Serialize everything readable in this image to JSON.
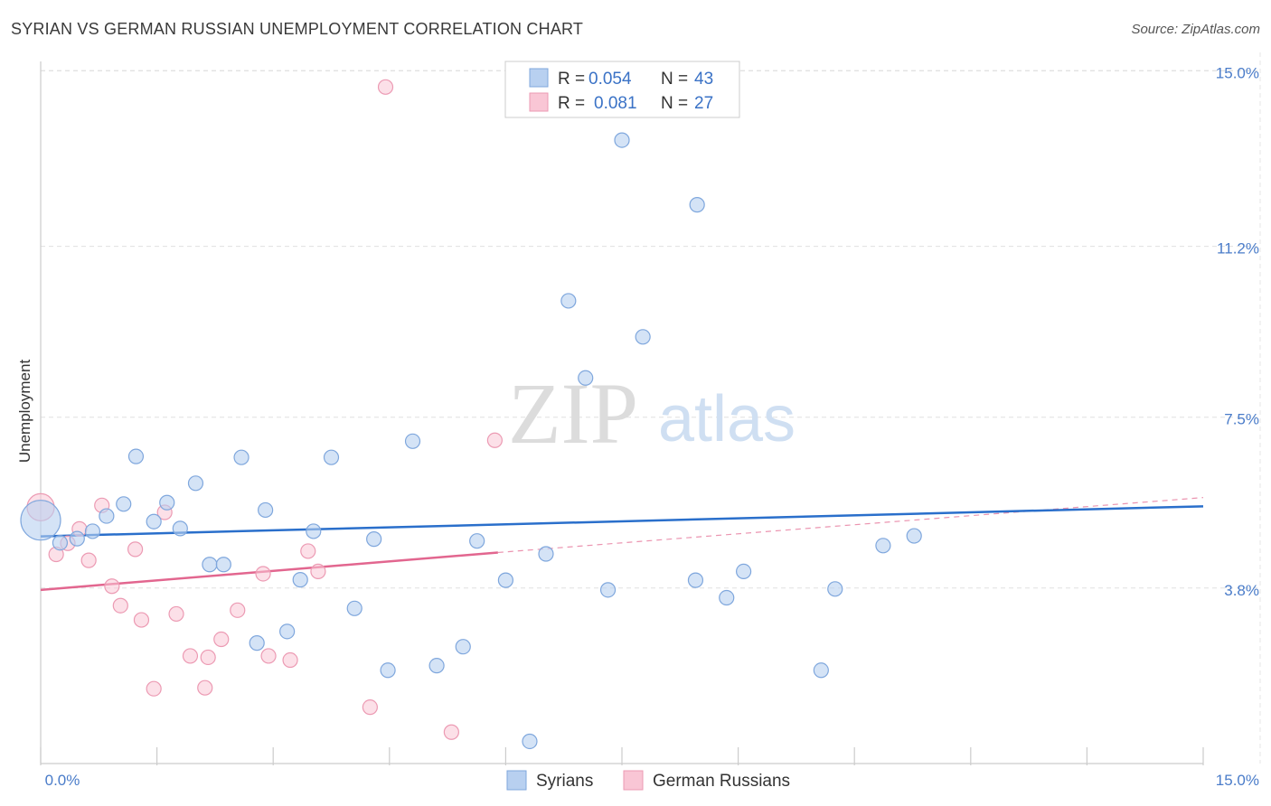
{
  "header": {
    "title": "SYRIAN VS GERMAN RUSSIAN UNEMPLOYMENT CORRELATION CHART",
    "source": "Source: ZipAtlas.com"
  },
  "watermark": {
    "zip": "ZIP",
    "atlas": "atlas"
  },
  "legend": {
    "r_label": "R =",
    "n_label": "N =",
    "syrians": {
      "r": "0.054",
      "n": "43"
    },
    "german_russians": {
      "r": "0.081",
      "n": "27"
    }
  },
  "bottom_legend": {
    "syrians": "Syrians",
    "german_russians": "German Russians"
  },
  "colors": {
    "syrians_fill": "#b8d0f0",
    "syrians_stroke": "#7fa7dd",
    "syrians_line": "#2a6fcb",
    "german_fill": "#f9c6d5",
    "german_stroke": "#ec9ab3",
    "german_line": "#e2668f",
    "tick_label": "#4a7cc9"
  },
  "chart_data": {
    "type": "scatter",
    "title": "SYRIAN VS GERMAN RUSSIAN UNEMPLOYMENT CORRELATION CHART",
    "xlabel": "",
    "ylabel": "Unemployment",
    "xlim": [
      0,
      15
    ],
    "ylim": [
      0,
      15.4
    ],
    "x_tick_labels": [
      "0.0%",
      "15.0%"
    ],
    "y_ticks": [
      3.8,
      7.5,
      11.2,
      15.0
    ],
    "y_tick_labels": [
      "3.8%",
      "7.5%",
      "11.2%",
      "15.0%"
    ],
    "grid": true,
    "series": [
      {
        "name": "Syrians",
        "r": 0.054,
        "n": 43,
        "trend": {
          "x": [
            0,
            15
          ],
          "y": [
            4.92,
            5.57
          ]
        },
        "points": [
          {
            "x": 0.0,
            "y": 5.27,
            "big": true
          },
          {
            "x": 0.25,
            "y": 4.78
          },
          {
            "x": 0.47,
            "y": 4.87
          },
          {
            "x": 0.67,
            "y": 5.03
          },
          {
            "x": 0.85,
            "y": 5.36
          },
          {
            "x": 1.07,
            "y": 5.62
          },
          {
            "x": 1.23,
            "y": 6.65
          },
          {
            "x": 1.46,
            "y": 5.24
          },
          {
            "x": 1.63,
            "y": 5.65
          },
          {
            "x": 1.8,
            "y": 5.09
          },
          {
            "x": 2.0,
            "y": 6.07
          },
          {
            "x": 2.18,
            "y": 4.31
          },
          {
            "x": 2.36,
            "y": 4.31
          },
          {
            "x": 2.59,
            "y": 6.63
          },
          {
            "x": 2.79,
            "y": 2.61
          },
          {
            "x": 2.9,
            "y": 5.49
          },
          {
            "x": 3.18,
            "y": 2.86
          },
          {
            "x": 3.35,
            "y": 3.98
          },
          {
            "x": 3.52,
            "y": 5.03
          },
          {
            "x": 3.75,
            "y": 6.63
          },
          {
            "x": 4.05,
            "y": 3.36
          },
          {
            "x": 4.3,
            "y": 4.86
          },
          {
            "x": 4.48,
            "y": 2.02
          },
          {
            "x": 4.8,
            "y": 6.98
          },
          {
            "x": 5.11,
            "y": 2.12
          },
          {
            "x": 5.45,
            "y": 2.53
          },
          {
            "x": 5.63,
            "y": 4.82
          },
          {
            "x": 6.0,
            "y": 3.97
          },
          {
            "x": 6.31,
            "y": 0.48
          },
          {
            "x": 6.52,
            "y": 4.54
          },
          {
            "x": 6.81,
            "y": 10.02
          },
          {
            "x": 7.03,
            "y": 8.35
          },
          {
            "x": 7.32,
            "y": 3.76
          },
          {
            "x": 7.5,
            "y": 13.5
          },
          {
            "x": 7.77,
            "y": 9.24
          },
          {
            "x": 8.45,
            "y": 3.97
          },
          {
            "x": 8.47,
            "y": 12.1
          },
          {
            "x": 8.85,
            "y": 3.59
          },
          {
            "x": 9.07,
            "y": 4.16
          },
          {
            "x": 10.07,
            "y": 2.02
          },
          {
            "x": 10.25,
            "y": 3.78
          },
          {
            "x": 10.87,
            "y": 4.72
          },
          {
            "x": 11.27,
            "y": 4.93
          }
        ]
      },
      {
        "name": "German Russians",
        "r": 0.081,
        "n": 27,
        "trend": {
          "x": [
            0,
            5.9
          ],
          "y": [
            3.76,
            4.57
          ]
        },
        "trend_dashed": {
          "x": [
            5.9,
            15
          ],
          "y": [
            4.57,
            5.76
          ]
        },
        "points": [
          {
            "x": 0.0,
            "y": 5.55,
            "big": true
          },
          {
            "x": 0.2,
            "y": 4.53
          },
          {
            "x": 0.35,
            "y": 4.77
          },
          {
            "x": 0.5,
            "y": 5.08
          },
          {
            "x": 0.62,
            "y": 4.4
          },
          {
            "x": 0.79,
            "y": 5.59
          },
          {
            "x": 0.92,
            "y": 3.84
          },
          {
            "x": 1.03,
            "y": 3.42
          },
          {
            "x": 1.22,
            "y": 4.64
          },
          {
            "x": 1.3,
            "y": 3.11
          },
          {
            "x": 1.46,
            "y": 1.62
          },
          {
            "x": 1.6,
            "y": 5.44
          },
          {
            "x": 1.75,
            "y": 3.24
          },
          {
            "x": 1.93,
            "y": 2.33
          },
          {
            "x": 2.12,
            "y": 1.64
          },
          {
            "x": 2.16,
            "y": 2.3
          },
          {
            "x": 2.33,
            "y": 2.69
          },
          {
            "x": 2.54,
            "y": 3.32
          },
          {
            "x": 2.87,
            "y": 4.11
          },
          {
            "x": 2.94,
            "y": 2.33
          },
          {
            "x": 3.22,
            "y": 2.24
          },
          {
            "x": 3.45,
            "y": 4.6
          },
          {
            "x": 3.58,
            "y": 4.16
          },
          {
            "x": 4.25,
            "y": 1.22
          },
          {
            "x": 4.45,
            "y": 14.65
          },
          {
            "x": 5.3,
            "y": 0.68
          },
          {
            "x": 5.86,
            "y": 7.0
          }
        ]
      }
    ]
  }
}
